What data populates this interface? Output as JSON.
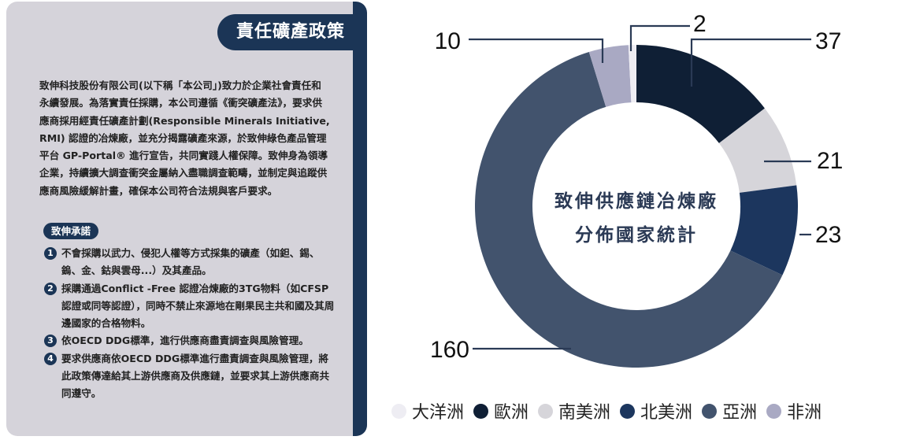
{
  "card": {
    "title": "責任礦產政策",
    "intro": "致伸科技股份有限公司(以下稱「本公司」)致力於企業社會責任和永續發展。為落實責任採購，本公司遵循《衝突礦產法》，要求供應商採用經責任礦產計劃(Responsible Minerals Initiative, RMI) 認證的冶煉廠，並充分揭露礦產來源，於致伸綠色產品管理平台 GP-Portal® 進行宣告，共同實踐人權保障。致伸身為領導企業，持續擴大調查衝突金屬納入盡職調查範疇，並制定與追蹤供應商風險緩解計畫，確保本公司符合法規與客戶要求。",
    "pledge_title": "致伸承諾",
    "pledges": [
      {
        "num": "1",
        "text": "不會採購以武力、侵犯人權等方式採集的礦產（如鉭、錫、鎢、金、鈷與雲母...）及其產品。"
      },
      {
        "num": "2",
        "text": "採購通過Conflict -Free 認證冶煉廠的3TG物料（如CFSP認證或同等認證），同時不禁止來源地在剛果民主共和國及其周邊國家的合格物料。"
      },
      {
        "num": "3",
        "text": "依OECD DDG標準，進行供應商盡責調查與風險管理。"
      },
      {
        "num": "4",
        "text": "要求供應商依OECD DDG標準進行盡責調查與風險管理，將此政策傳達給其上游供應商及供應鏈，並要求其上游供應商共同遵守。"
      }
    ]
  },
  "chart_data": {
    "type": "pie",
    "donut": true,
    "title": "致伸供應鏈冶煉廠分佈國家統計",
    "title_lines": [
      "致伸供應鏈冶煉廠",
      "分佈國家統計"
    ],
    "legend_position": "bottom",
    "categories": [
      "歐洲",
      "南美洲",
      "北美洲",
      "亞洲",
      "非洲",
      "大洋洲"
    ],
    "values": [
      37,
      21,
      23,
      160,
      10,
      2
    ],
    "colors": [
      "#0f1f35",
      "#d6d5da",
      "#1c365e",
      "#42536d",
      "#a9a9c3",
      "#eeedf3"
    ],
    "legend": [
      {
        "label": "大洋洲",
        "color": "#eeedf3"
      },
      {
        "label": "歐洲",
        "color": "#0f1f35"
      },
      {
        "label": "南美洲",
        "color": "#d6d5da"
      },
      {
        "label": "北美洲",
        "color": "#1c365e"
      },
      {
        "label": "亞洲",
        "color": "#42536d"
      },
      {
        "label": "非洲",
        "color": "#a9a9c3"
      }
    ]
  }
}
